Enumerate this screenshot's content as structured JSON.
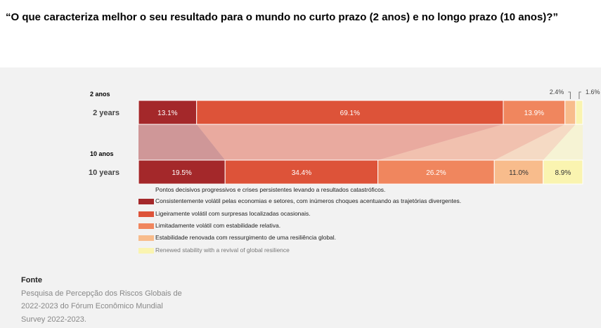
{
  "question": "“O que caracteriza melhor o seu resultado para o mundo no curto prazo (2 anos) e no longo prazo (10 anos)?”",
  "chart_data": {
    "type": "bar",
    "orientation": "horizontal-stacked-100",
    "rows": [
      {
        "label_pt": "2 anos",
        "label_en": "2 years",
        "values": [
          13.1,
          69.1,
          13.9,
          2.4,
          1.6
        ],
        "value_labels": [
          "13.1%",
          "69.1%",
          "13.9%",
          "2.4%",
          "1.6%"
        ]
      },
      {
        "label_pt": "10 anos",
        "label_en": "10 years",
        "values": [
          19.5,
          34.4,
          26.2,
          11.0,
          8.9
        ],
        "value_labels": [
          "19.5%",
          "34.4%",
          "26.2%",
          "11.0%",
          "8.9%"
        ]
      }
    ],
    "series": [
      {
        "name": "Consistentemente volátil pelas economias e setores, com inúmeros choques acentuando as trajetórias divergentes.",
        "color": "#a4282a"
      },
      {
        "name": "Ligeiramente volátil com surpresas localizadas ocasionais.",
        "color": "#dd5339"
      },
      {
        "name": "Limitadamente volátil com estabilidade relativa.",
        "color": "#f0865e"
      },
      {
        "name": "Estabilidade renovada com ressurgimento de uma resiliência global.",
        "color": "#f8bc8c"
      },
      {
        "name": "Renewed stability with a revival of global resilience",
        "color": "#faf4b0"
      }
    ],
    "legend_heading": "Pontos decisivos progressivos e crises persistentes levando a resultados catastróficos.",
    "legend_placement": "bottom-left"
  },
  "source": {
    "title": "Fonte",
    "lines": [
      "Pesquisa de Percepção dos Riscos Globais de",
      "2022-2023 do Fórum Econômico Mundial",
      "Survey 2022-2023."
    ]
  }
}
